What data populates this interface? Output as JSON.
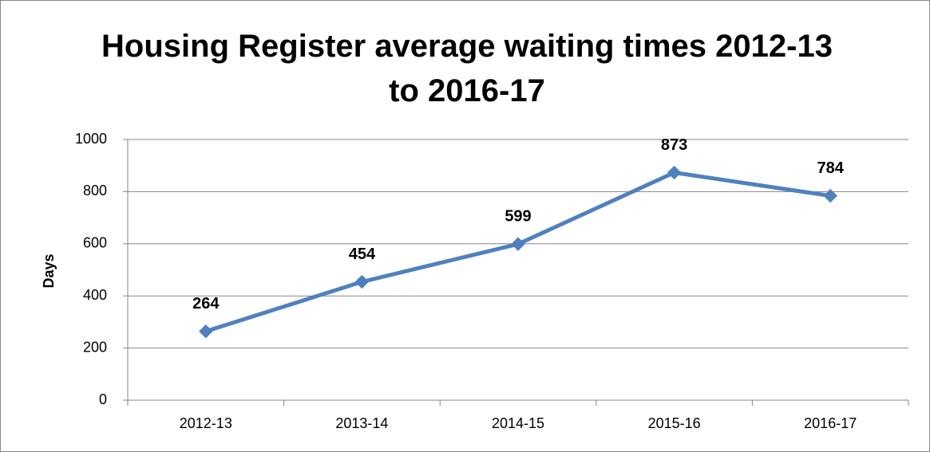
{
  "chart_data": {
    "type": "line",
    "title": "Housing Register average waiting times 2012-13 to 2016-17",
    "y_label": "Days",
    "categories": [
      "2012-13",
      "2013-14",
      "2014-15",
      "2015-16",
      "2016-17"
    ],
    "series": [
      {
        "name": "Days",
        "color": "#4f81bd",
        "values": [
          264,
          454,
          599,
          873,
          784
        ]
      }
    ],
    "ylim": [
      0,
      1000
    ],
    "yticks": [
      0,
      200,
      400,
      600,
      800,
      1000
    ],
    "grid": true
  }
}
